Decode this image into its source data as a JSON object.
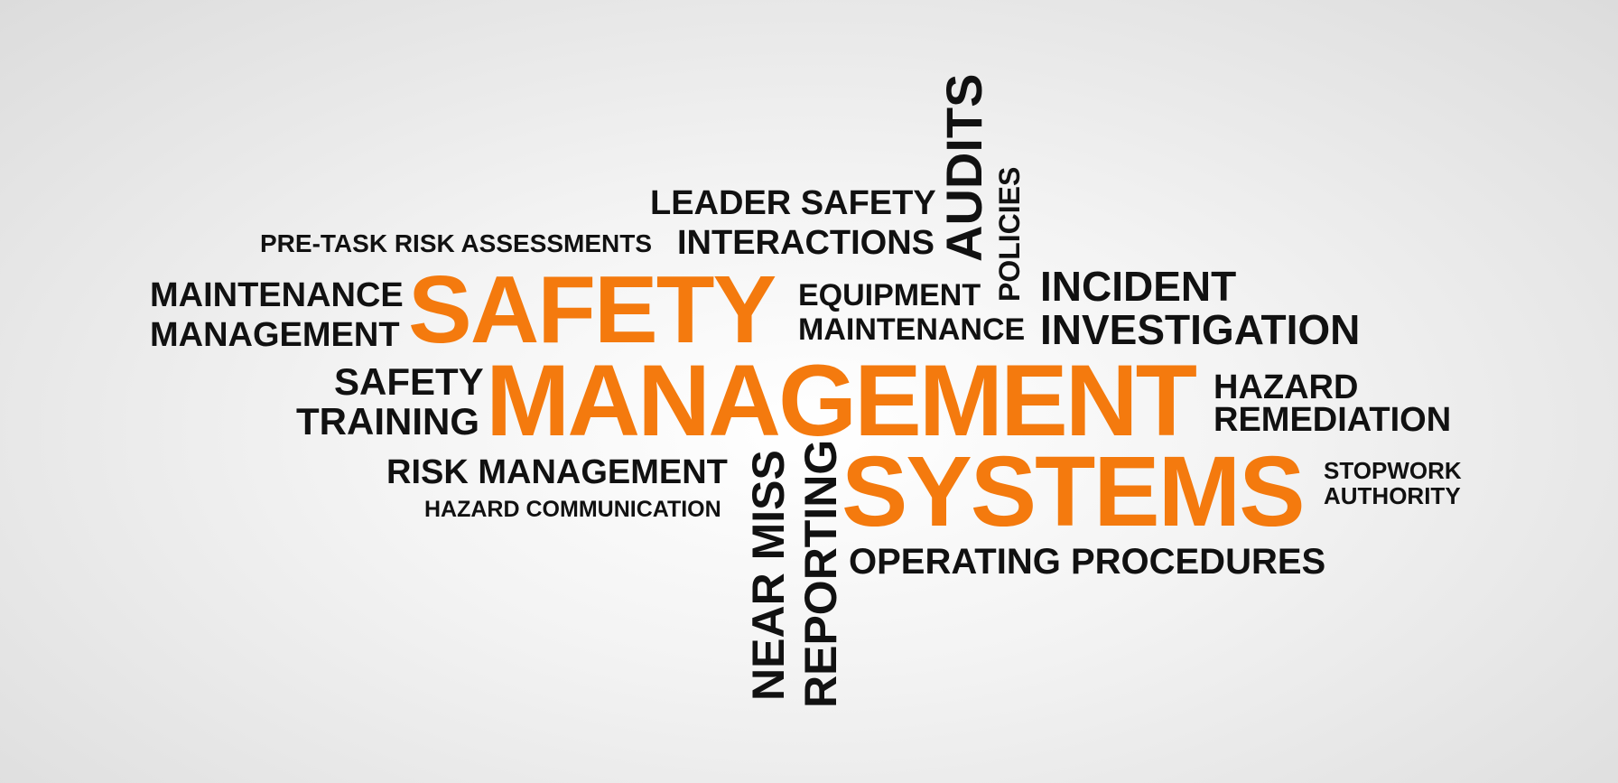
{
  "word_cloud": {
    "primary": [
      "SAFETY",
      "MANAGEMENT",
      "SYSTEMS"
    ],
    "terms": {
      "leader_safety": "LEADER SAFETY",
      "interactions": "INTERACTIONS",
      "pre_task": "PRE-TASK RISK ASSESSMENTS",
      "maintenance_management_1": "MAINTENANCE",
      "maintenance_management_2": "MANAGEMENT",
      "equipment_maintenance_1": "EQUIPMENT",
      "equipment_maintenance_2": "MAINTENANCE",
      "incident_investigation_1": "INCIDENT",
      "incident_investigation_2": "INVESTIGATION",
      "safety_training_1": "SAFETY",
      "safety_training_2": "TRAINING",
      "hazard_remediation_1": "HAZARD",
      "hazard_remediation_2": "REMEDIATION",
      "risk_management": "RISK MANAGEMENT",
      "hazard_communication": "HAZARD COMMUNICATION",
      "stopwork_authority_1": "STOPWORK",
      "stopwork_authority_2": "AUTHORITY",
      "operating_procedures": "OPERATING PROCEDURES",
      "audits": "AUDITS",
      "policies": "POLICIES",
      "near_miss": "NEAR MISS",
      "reporting": "REPORTING"
    },
    "colors": {
      "primary": "#f47a0e",
      "secondary": "#111111",
      "background": "#f3f3f3"
    }
  }
}
